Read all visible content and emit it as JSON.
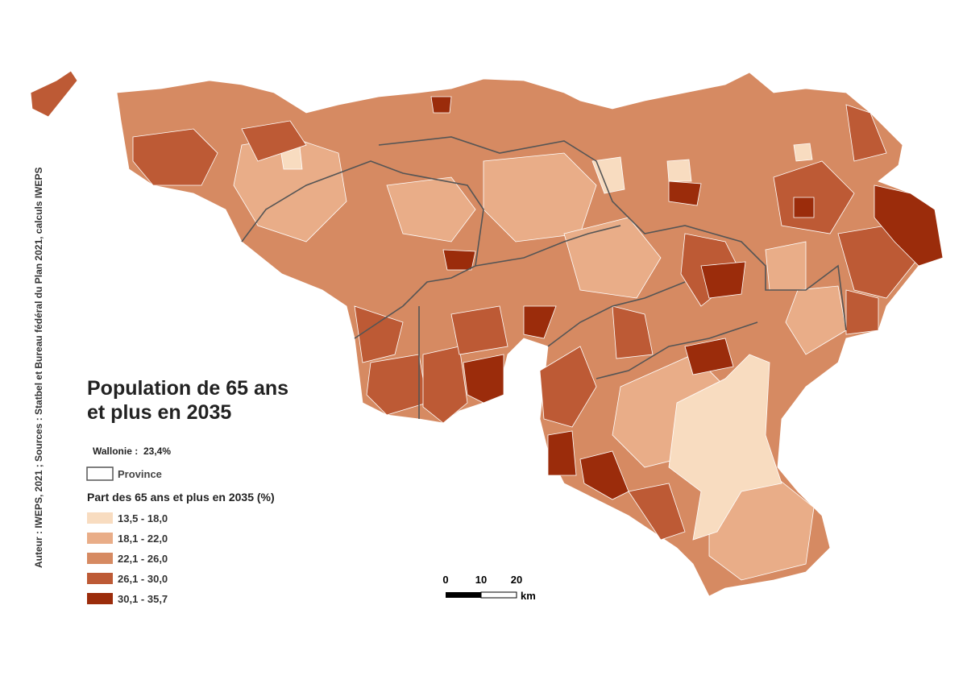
{
  "title": [
    "Population de 65 ans",
    "et plus en 2035"
  ],
  "region": {
    "label": "Wallonie :",
    "value": "23,4%"
  },
  "boundary_legend": "Province",
  "legend": {
    "title": "Part des 65 ans et plus en 2035 (%)",
    "classes": [
      {
        "label": "13,5 - 18,0",
        "color": "#f8dcc0"
      },
      {
        "label": "18,1 - 22,0",
        "color": "#e9ad88"
      },
      {
        "label": "22,1 - 26,0",
        "color": "#d68a62"
      },
      {
        "label": "26,1 - 30,0",
        "color": "#bd5a35"
      },
      {
        "label": "30,1 - 35,7",
        "color": "#9b2c0b"
      }
    ]
  },
  "scale": {
    "labels": [
      "0",
      "10",
      "20"
    ],
    "unit": "km"
  },
  "credit": "Auteur : IWEPS, 2021 ; Sources : Statbel et Bureau fédéral du Plan 2021, calculs IWEPS"
}
